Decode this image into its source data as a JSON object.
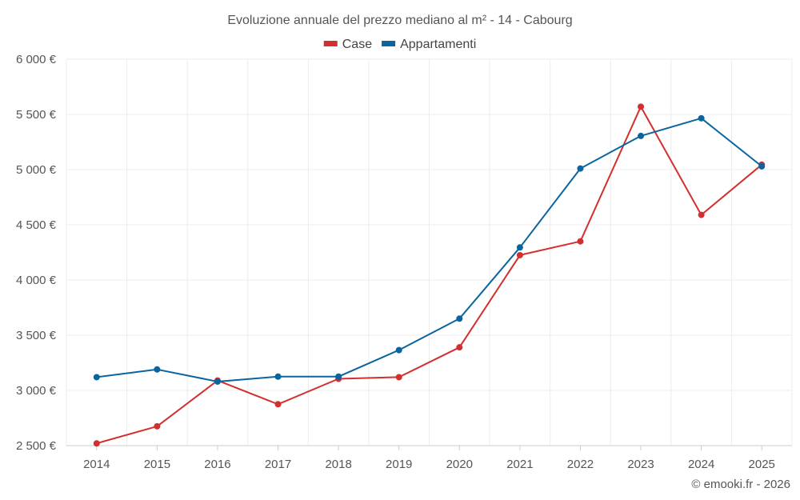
{
  "chart_data": {
    "type": "line",
    "title": "Evoluzione annuale del prezzo mediano al m² - 14 - Cabourg",
    "categories": [
      "2014",
      "2015",
      "2016",
      "2017",
      "2018",
      "2019",
      "2020",
      "2021",
      "2022",
      "2023",
      "2024",
      "2025"
    ],
    "series": [
      {
        "name": "Case",
        "color": "#d32f2f",
        "values": [
          2520,
          2675,
          3090,
          2875,
          3105,
          3120,
          3390,
          4225,
          4350,
          5570,
          4590,
          5045
        ]
      },
      {
        "name": "Appartamenti",
        "color": "#0a659e",
        "values": [
          3120,
          3190,
          3080,
          3125,
          3125,
          3365,
          3650,
          4295,
          5010,
          5305,
          5465,
          5030
        ]
      }
    ],
    "ylim": [
      2500,
      6000
    ],
    "yticks": [
      2500,
      3000,
      3500,
      4000,
      4500,
      5000,
      5500,
      6000
    ],
    "ytick_labels": [
      "2 500 €",
      "3 000 €",
      "3 500 €",
      "4 000 €",
      "4 500 €",
      "5 000 €",
      "5 500 €",
      "6 000 €"
    ],
    "grid": true,
    "legend_position": "top-center"
  },
  "credit": "© emooki.fr - 2026"
}
